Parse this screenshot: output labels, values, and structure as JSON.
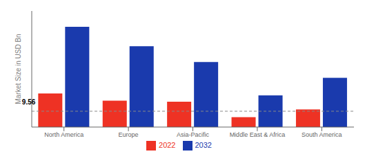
{
  "chart_data": {
    "type": "bar",
    "categories": [
      "North America",
      "Europe",
      "Asia-Pacific",
      "Middle East & Africa",
      "South America"
    ],
    "series": [
      {
        "name": "2022",
        "color": "#ee3224",
        "values": [
          9.56,
          7.5,
          7.2,
          2.8,
          5.0
        ]
      },
      {
        "name": "2032",
        "color": "#1a3aad",
        "values": [
          28.5,
          23.0,
          18.5,
          9.0,
          14.0
        ]
      }
    ],
    "ylabel": "Market Size in USD Bn",
    "ylim": [
      0,
      33
    ],
    "yticks": [],
    "hline": 4.5,
    "annotations": [
      {
        "text": "9.56",
        "category": "North America",
        "series": "2022"
      }
    ],
    "grid": false,
    "legend": "bottom",
    "tick_labels": "x"
  }
}
